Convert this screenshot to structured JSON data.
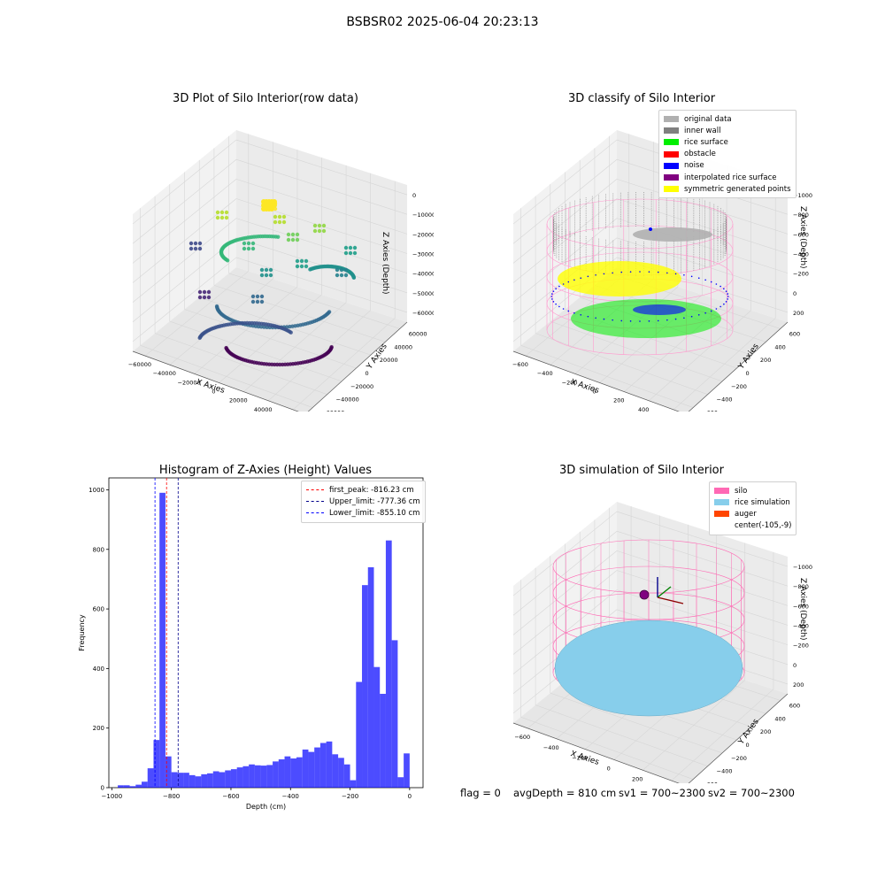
{
  "figure": {
    "suptitle": "BSBSR02 2025-06-04 20:23:13"
  },
  "panels": {
    "raw": {
      "title": "3D Plot of Silo Interior(row data)",
      "x_label": "X Axies",
      "y_label": "Y Axies",
      "z_label": "Z Axies (Depth)",
      "x_ticks": [
        "−60000",
        "−40000",
        "−20000",
        "0",
        "20000",
        "40000",
        "60000"
      ],
      "y_ticks": [
        "−60000",
        "−40000",
        "−20000",
        "0",
        "20000",
        "40000",
        "60000"
      ],
      "z_ticks": [
        "0",
        "−10000",
        "−20000",
        "−30000",
        "−40000",
        "−50000",
        "−60000"
      ]
    },
    "classify": {
      "title": "3D classify of Silo Interior",
      "x_label": "X Axies",
      "y_label": "Y Axies",
      "z_label": "Z Axies (Depth)",
      "x_ticks": [
        "−600",
        "−400",
        "−200",
        "0",
        "200",
        "400",
        "600"
      ],
      "y_ticks": [
        "−600",
        "−400",
        "−200",
        "0",
        "200",
        "400",
        "600"
      ],
      "z_ticks": [
        "−1000",
        "−800",
        "−600",
        "−400",
        "−200",
        "0",
        "200"
      ],
      "legend": [
        {
          "label": "original data",
          "color": "#b0b0b0"
        },
        {
          "label": "inner wall",
          "color": "#808080"
        },
        {
          "label": "rice surface",
          "color": "#00ee00"
        },
        {
          "label": "obstacle",
          "color": "#ff0000"
        },
        {
          "label": "noise",
          "color": "#0000ff"
        },
        {
          "label": "interpolated rice surface",
          "color": "#800080"
        },
        {
          "label": "symmetric generated points",
          "color": "#ffff00"
        }
      ]
    },
    "simulation": {
      "title": "3D simulation of Silo Interior",
      "x_label": "X Axies",
      "y_label": "Y Axies",
      "z_label": "Z Axies (Depth)",
      "x_ticks": [
        "−600",
        "−400",
        "−200",
        "0",
        "200",
        "400"
      ],
      "y_ticks": [
        "−600",
        "−400",
        "−200",
        "0",
        "200",
        "400",
        "600"
      ],
      "z_ticks": [
        "−1000",
        "−800",
        "−600",
        "−400",
        "−200",
        "0",
        "200"
      ],
      "legend": [
        {
          "label": "silo",
          "color": "#ff69b4"
        },
        {
          "label": "rice simulation",
          "color": "#87ceeb"
        },
        {
          "label": "auger",
          "color": "#ff4500"
        },
        {
          "label": "center(-105,-9)",
          "color": ""
        }
      ],
      "footer": {
        "flag": "flag = 0",
        "avg_depth": "avgDepth = 810 cm",
        "sv1": "sv1 = 700~2300",
        "sv2": "sv2 = 700~2300"
      }
    }
  },
  "chart_data": [
    {
      "type": "scatter",
      "title": "3D Plot of Silo Interior(row data)",
      "xlabel": "X Axies",
      "ylabel": "Y Axies",
      "zlabel": "Z Axies (Depth)",
      "xlim": [
        -60000,
        60000
      ],
      "ylim": [
        -60000,
        60000
      ],
      "zlim": [
        -65000,
        5000
      ],
      "colormap": "viridis"
    },
    {
      "type": "scatter",
      "title": "3D classify of Silo Interior",
      "xlabel": "X Axies",
      "ylabel": "Y Axies",
      "zlabel": "Z Axies (Depth)",
      "xlim": [
        -700,
        650
      ],
      "ylim": [
        -700,
        650
      ],
      "zlim": [
        -1100,
        200
      ],
      "series": [
        {
          "name": "original data",
          "color": "#b0b0b0"
        },
        {
          "name": "inner wall",
          "color": "#808080"
        },
        {
          "name": "rice surface",
          "color": "#00ee00"
        },
        {
          "name": "obstacle",
          "color": "#ff0000"
        },
        {
          "name": "noise",
          "color": "#0000ff"
        },
        {
          "name": "interpolated rice surface",
          "color": "#800080"
        },
        {
          "name": "symmetric generated points",
          "color": "#ffff00"
        }
      ],
      "legend_position": "top-right"
    },
    {
      "type": "bar",
      "title": "Histogram of Z-Axies (Height) Values",
      "xlabel": "Depth (cm)",
      "ylabel": "Frequency",
      "xlim": [
        -1010,
        45
      ],
      "ylim": [
        0,
        1040
      ],
      "x_ticks": [
        -1000,
        -800,
        -600,
        -400,
        -200,
        0
      ],
      "y_ticks": [
        0,
        200,
        400,
        600,
        800,
        1000
      ],
      "bin_edges": [
        -980,
        -960,
        -940,
        -920,
        -900,
        -880,
        -860,
        -840,
        -820,
        -800,
        -780,
        -760,
        -740,
        -720,
        -700,
        -680,
        -660,
        -640,
        -620,
        -600,
        -580,
        -560,
        -540,
        -520,
        -500,
        -480,
        -460,
        -440,
        -420,
        -400,
        -380,
        -360,
        -340,
        -320,
        -300,
        -280,
        -260,
        -240,
        -220,
        -200,
        -180,
        -160,
        -140,
        -120,
        -100,
        -80,
        -60,
        -40,
        -20,
        0,
        20
      ],
      "values": [
        8,
        8,
        5,
        10,
        20,
        65,
        160,
        990,
        105,
        52,
        50,
        50,
        42,
        38,
        45,
        48,
        55,
        52,
        58,
        62,
        68,
        72,
        78,
        75,
        74,
        76,
        88,
        95,
        105,
        98,
        102,
        128,
        120,
        135,
        150,
        155,
        112,
        100,
        78,
        25,
        355,
        680,
        740,
        405,
        315,
        830,
        495,
        35,
        115,
        0
      ],
      "bar_color": "#0000ff",
      "vlines": [
        {
          "label": "first_peak: -816.23 cm",
          "x": -816.23,
          "color": "#ff0000",
          "style": "dashed"
        },
        {
          "label": "Upper_limit: -777.36 cm",
          "x": -777.36,
          "color": "#00008b",
          "style": "dashed"
        },
        {
          "label": "Lower_limit: -855.10 cm",
          "x": -855.1,
          "color": "#0000ff",
          "style": "dashed"
        }
      ],
      "legend_position": "top-right"
    },
    {
      "type": "scatter",
      "title": "3D simulation of Silo Interior",
      "xlabel": "X Axies",
      "ylabel": "Y Axies",
      "zlabel": "Z Axies (Depth)",
      "series": [
        {
          "name": "silo",
          "color": "#ff69b4"
        },
        {
          "name": "rice simulation",
          "color": "#87ceeb"
        },
        {
          "name": "auger",
          "color": "#ff4500"
        },
        {
          "name": "center(-105,-9)",
          "color": ""
        }
      ],
      "legend_position": "top-right"
    }
  ]
}
